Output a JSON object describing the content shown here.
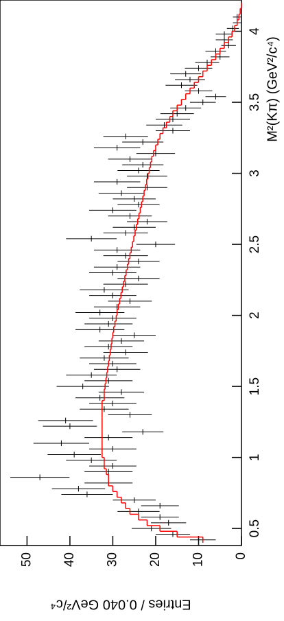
{
  "chart_data": {
    "type": "scatter",
    "x_label": "M²(Kπ) (GeV²/c⁴)",
    "y_label": "Entries / 0.040 GeV²/c⁴",
    "xlim": [
      0.38,
      4.22
    ],
    "xticks": [
      0.5,
      1,
      1.5,
      2,
      2.5,
      3,
      3.5,
      4
    ],
    "ylim": [
      0,
      56.3
    ],
    "yticks": [
      0,
      10,
      20,
      30,
      40,
      50
    ],
    "x": [
      0.42,
      0.46,
      0.5,
      0.54,
      0.58,
      0.62,
      0.66,
      0.7,
      0.74,
      0.78,
      0.82,
      0.86,
      0.9,
      0.94,
      0.98,
      1.02,
      1.06,
      1.1,
      1.14,
      1.18,
      1.22,
      1.26,
      1.3,
      1.34,
      1.38,
      1.42,
      1.46,
      1.5,
      1.54,
      1.58,
      1.62,
      1.66,
      1.7,
      1.74,
      1.78,
      1.82,
      1.86,
      1.9,
      1.94,
      1.98,
      2.02,
      2.06,
      2.1,
      2.14,
      2.18,
      2.22,
      2.26,
      2.3,
      2.34,
      2.38,
      2.42,
      2.46,
      2.5,
      2.54,
      2.58,
      2.62,
      2.66,
      2.7,
      2.74,
      2.78,
      2.82,
      2.86,
      2.9,
      2.94,
      2.98,
      3.02,
      3.06,
      3.1,
      3.14,
      3.18,
      3.22,
      3.26,
      3.3,
      3.34,
      3.38,
      3.42,
      3.46,
      3.5,
      3.54,
      3.58,
      3.62,
      3.66,
      3.7,
      3.74,
      3.78,
      3.82,
      3.86,
      3.9,
      3.94,
      3.98,
      4.02,
      4.06,
      4.1,
      4.14,
      4.18
    ],
    "series": [
      {
        "color": "#000000",
        "values": [
          9,
          16,
          21,
          17,
          19,
          24,
          19,
          25,
          36,
          38,
          31,
          47,
          31,
          30,
          35,
          39,
          30,
          42,
          31,
          23,
          40,
          41,
          26,
          32,
          30,
          33,
          28,
          37,
          31,
          35,
          29,
          30,
          32,
          27,
          31,
          28,
          25,
          33,
          31,
          30,
          33,
          29,
          26,
          30,
          32,
          27,
          24,
          30,
          29,
          24,
          27,
          29,
          20,
          35,
          27,
          25,
          22,
          26,
          30,
          24,
          25,
          28,
          22,
          29,
          22,
          24,
          23,
          26,
          20,
          29,
          23,
          27,
          16,
          18,
          16,
          15,
          13,
          9,
          6,
          10,
          14,
          12,
          13,
          10,
          8,
          5,
          6,
          3,
          4,
          4,
          2,
          1,
          1,
          0,
          0
        ],
        "errors": [
          3,
          4,
          4.6,
          4.1,
          4.4,
          4.9,
          4.4,
          5,
          6,
          6.2,
          5.6,
          6.9,
          5.6,
          5.5,
          5.9,
          6.2,
          5.5,
          6.5,
          5.6,
          4.8,
          6.3,
          6.4,
          5.1,
          5.7,
          5.5,
          5.7,
          5.3,
          6.1,
          5.6,
          5.9,
          5.4,
          5.5,
          5.7,
          5.2,
          5.6,
          5.3,
          5,
          5.7,
          5.6,
          5.5,
          5.7,
          5.4,
          5.1,
          5.5,
          5.7,
          5.2,
          4.9,
          5.5,
          5.4,
          4.9,
          5.2,
          5.4,
          4.5,
          5.9,
          5.2,
          5,
          4.7,
          5.1,
          5.5,
          4.9,
          5,
          5.3,
          4.7,
          5.4,
          4.7,
          4.9,
          4.8,
          5.1,
          4.5,
          5.4,
          4.8,
          5.2,
          4,
          4.2,
          4,
          3.9,
          3.6,
          3,
          2.4,
          3.2,
          3.7,
          3.5,
          3.6,
          3.2,
          2.8,
          2.2,
          2.4,
          1.7,
          2,
          2,
          1.4,
          1,
          1,
          0,
          0
        ]
      },
      {
        "color": "#ff0000",
        "style": "step",
        "values": [
          9,
          15,
          19,
          22,
          24,
          26,
          27,
          28,
          29,
          30,
          31,
          31,
          31.5,
          32,
          32,
          32.5,
          32.5,
          32.5,
          32.5,
          32.5,
          32.5,
          32.5,
          32.5,
          32.5,
          32.5,
          32,
          32,
          31.8,
          31.6,
          31.4,
          31.2,
          31,
          30.8,
          30.6,
          30.4,
          30.2,
          30,
          29.8,
          29.5,
          29.2,
          29,
          28.7,
          28.4,
          28.1,
          27.8,
          27.5,
          27.2,
          26.9,
          26.6,
          26.3,
          26,
          25.7,
          25.4,
          25.1,
          24.8,
          24.5,
          24.2,
          23.9,
          23.6,
          23.3,
          23,
          22.7,
          22.4,
          22.1,
          21.8,
          21.5,
          21.2,
          20.9,
          20.5,
          20,
          19.5,
          19,
          18.3,
          17.5,
          16.7,
          16,
          15,
          14,
          13,
          12,
          11,
          10,
          9,
          8,
          7,
          6,
          5,
          4,
          3,
          2.2,
          1.6,
          1,
          0.6,
          0.3,
          0
        ]
      }
    ]
  }
}
